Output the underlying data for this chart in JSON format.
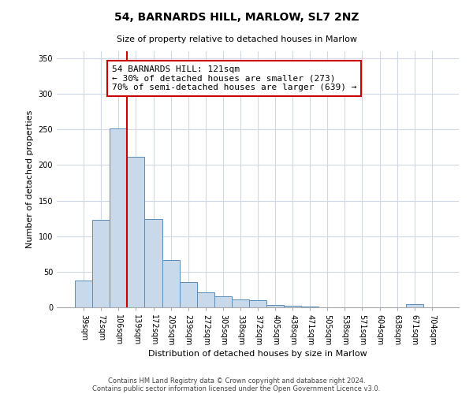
{
  "title": "54, BARNARDS HILL, MARLOW, SL7 2NZ",
  "subtitle": "Size of property relative to detached houses in Marlow",
  "xlabel": "Distribution of detached houses by size in Marlow",
  "ylabel": "Number of detached properties",
  "categories": [
    "39sqm",
    "72sqm",
    "106sqm",
    "139sqm",
    "172sqm",
    "205sqm",
    "239sqm",
    "272sqm",
    "305sqm",
    "338sqm",
    "372sqm",
    "405sqm",
    "438sqm",
    "471sqm",
    "505sqm",
    "538sqm",
    "571sqm",
    "604sqm",
    "638sqm",
    "671sqm",
    "704sqm"
  ],
  "values": [
    38,
    123,
    252,
    212,
    124,
    67,
    35,
    21,
    15,
    11,
    10,
    3,
    2,
    1,
    0,
    0,
    0,
    0,
    0,
    4,
    0
  ],
  "bar_color": "#c9d9ec",
  "bar_edge_color": "#5b8db8",
  "vline_x": 2.5,
  "vline_color": "#cc0000",
  "annotation_line1": "54 BARNARDS HILL: 121sqm",
  "annotation_line2": "← 30% of detached houses are smaller (273)",
  "annotation_line3": "70% of semi-detached houses are larger (639) →",
  "annotation_box_color": "#ffffff",
  "annotation_box_edge": "#cc0000",
  "ylim": [
    0,
    360
  ],
  "yticks": [
    0,
    50,
    100,
    150,
    200,
    250,
    300,
    350
  ],
  "footer1": "Contains HM Land Registry data © Crown copyright and database right 2024.",
  "footer2": "Contains public sector information licensed under the Open Government Licence v3.0.",
  "background_color": "#ffffff",
  "grid_color": "#d0d8e8",
  "title_fontsize": 10,
  "subtitle_fontsize": 8,
  "axis_label_fontsize": 8,
  "tick_fontsize": 7,
  "annot_fontsize": 8
}
